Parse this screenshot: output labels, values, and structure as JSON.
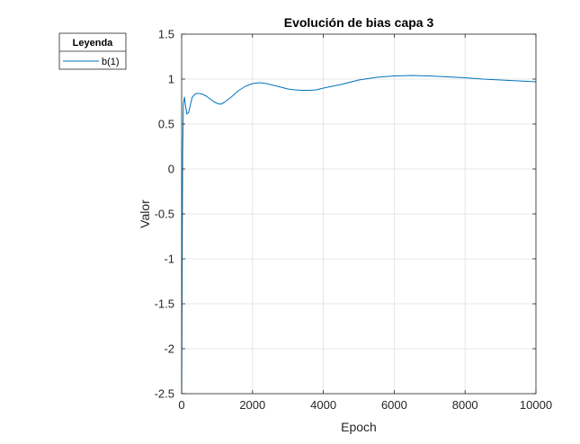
{
  "chart_data": {
    "type": "line",
    "title": "Evolución de bias capa 3",
    "xlabel": "Epoch",
    "ylabel": "Valor",
    "xlim": [
      0,
      10000
    ],
    "ylim": [
      -2.5,
      1.5
    ],
    "xticks": [
      0,
      2000,
      4000,
      6000,
      8000,
      10000
    ],
    "xtick_labels": [
      "0",
      "2000",
      "4000",
      "6000",
      "8000",
      "10000"
    ],
    "yticks": [
      -2.5,
      -2,
      -1.5,
      -1,
      -0.5,
      0,
      0.5,
      1,
      1.5
    ],
    "ytick_labels": [
      "-2.5",
      "-2",
      "-1.5",
      "-1",
      "-0.5",
      "0",
      "0.5",
      "1",
      "1.5"
    ],
    "grid": true,
    "legend": {
      "title": "Leyenda",
      "placement": "outside-top-left",
      "entries": [
        "b(1)"
      ]
    },
    "series": [
      {
        "name": "b(1)",
        "color": "#0072BD",
        "x": [
          0,
          15,
          30,
          50,
          80,
          110,
          150,
          200,
          250,
          300,
          400,
          500,
          600,
          700,
          800,
          900,
          1000,
          1100,
          1200,
          1400,
          1600,
          1800,
          2000,
          2200,
          2400,
          2600,
          2800,
          3000,
          3200,
          3400,
          3600,
          3800,
          4000,
          4500,
          5000,
          5500,
          6000,
          6500,
          7000,
          7500,
          8000,
          8500,
          9000,
          9500,
          10000
        ],
        "y": [
          -2.5,
          -1.0,
          0.2,
          0.72,
          0.8,
          0.7,
          0.61,
          0.63,
          0.72,
          0.8,
          0.84,
          0.84,
          0.83,
          0.81,
          0.78,
          0.75,
          0.73,
          0.72,
          0.74,
          0.8,
          0.87,
          0.92,
          0.95,
          0.96,
          0.95,
          0.93,
          0.91,
          0.89,
          0.88,
          0.875,
          0.875,
          0.88,
          0.9,
          0.94,
          0.99,
          1.02,
          1.035,
          1.04,
          1.035,
          1.025,
          1.015,
          1.0,
          0.99,
          0.98,
          0.97
        ]
      }
    ]
  }
}
